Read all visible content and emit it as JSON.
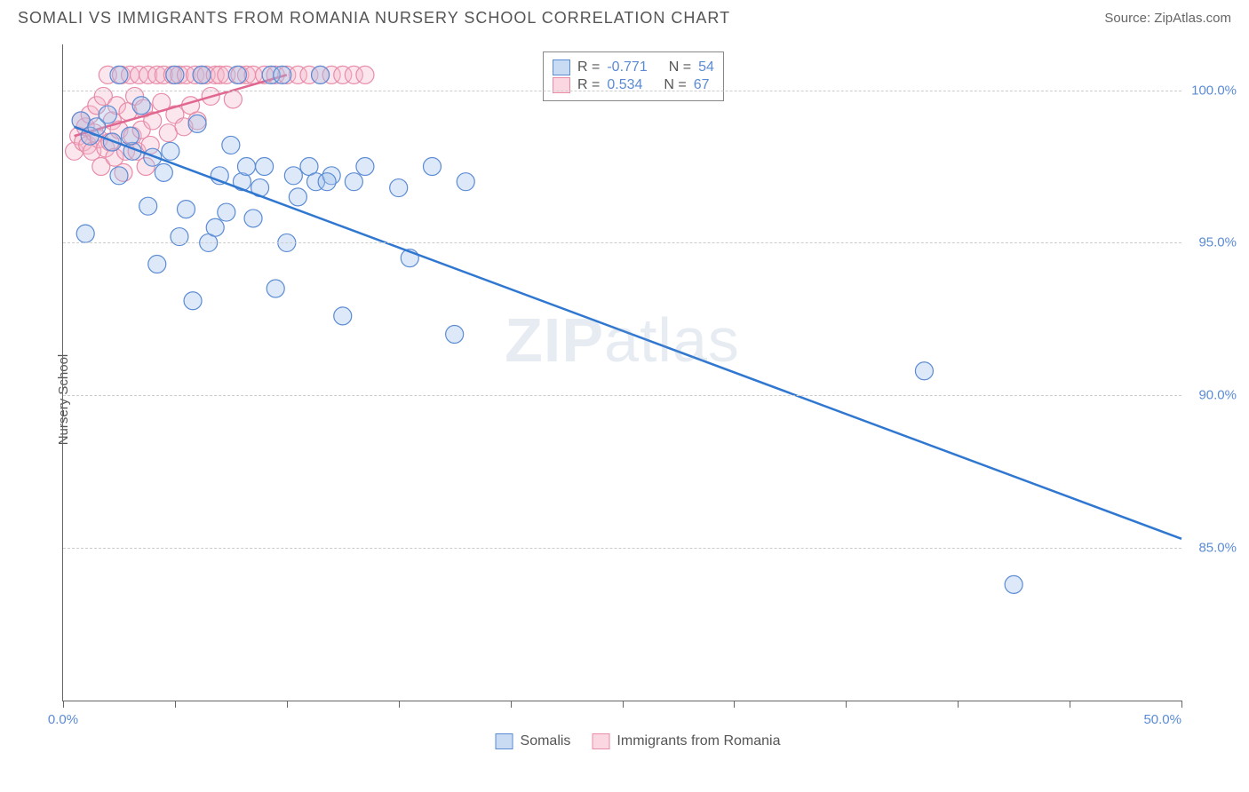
{
  "header": {
    "title": "SOMALI VS IMMIGRANTS FROM ROMANIA NURSERY SCHOOL CORRELATION CHART",
    "source_prefix": "Source: ",
    "source": "ZipAtlas.com"
  },
  "watermark": {
    "zip": "ZIP",
    "atlas": "atlas"
  },
  "chart": {
    "type": "scatter",
    "y_axis_label": "Nursery School",
    "background_color": "#ffffff",
    "grid_color": "#cccccc",
    "xlim": [
      0,
      50
    ],
    "ylim": [
      80,
      101.5
    ],
    "x_ticks": [
      0,
      5,
      10,
      15,
      20,
      25,
      30,
      35,
      40,
      45,
      50
    ],
    "x_tick_labels": {
      "0": "0.0%",
      "50": "50.0%"
    },
    "y_ticks": [
      85,
      90,
      95,
      100
    ],
    "y_tick_labels": [
      "85.0%",
      "90.0%",
      "95.0%",
      "100.0%"
    ],
    "y_tick_label_color": "#5b8bd4",
    "x_tick_label_color": "#5b8bd4",
    "axis_line_color": "#666666",
    "label_fontsize": 15,
    "marker_radius": 10,
    "marker_opacity": 0.35,
    "series": {
      "blue": {
        "label": "Somalis",
        "color_fill": "#9ec1ea",
        "color_stroke": "#5b8bd4",
        "R": "-0.771",
        "N": "54",
        "trend": {
          "x1": 0.5,
          "y1": 98.8,
          "x2": 50,
          "y2": 85.3,
          "color": "#2f77d0",
          "width": 2.5
        },
        "points": [
          [
            0.8,
            99.0
          ],
          [
            1.2,
            98.5
          ],
          [
            1.5,
            98.8
          ],
          [
            2.0,
            99.2
          ],
          [
            2.2,
            98.3
          ],
          [
            2.5,
            100.5
          ],
          [
            3.1,
            98.0
          ],
          [
            3.5,
            99.5
          ],
          [
            3.8,
            96.2
          ],
          [
            4.0,
            97.8
          ],
          [
            4.2,
            94.3
          ],
          [
            4.5,
            97.3
          ],
          [
            5.0,
            100.5
          ],
          [
            5.2,
            95.2
          ],
          [
            5.5,
            96.1
          ],
          [
            5.8,
            93.1
          ],
          [
            6.0,
            98.9
          ],
          [
            6.2,
            100.5
          ],
          [
            6.5,
            95.0
          ],
          [
            7.0,
            97.2
          ],
          [
            7.3,
            96.0
          ],
          [
            7.5,
            98.2
          ],
          [
            7.8,
            100.5
          ],
          [
            8.0,
            97.0
          ],
          [
            8.2,
            97.5
          ],
          [
            8.5,
            95.8
          ],
          [
            8.8,
            96.8
          ],
          [
            9.0,
            97.5
          ],
          [
            9.3,
            100.5
          ],
          [
            9.5,
            93.5
          ],
          [
            10.0,
            95.0
          ],
          [
            10.3,
            97.2
          ],
          [
            10.5,
            96.5
          ],
          [
            11.0,
            97.5
          ],
          [
            11.3,
            97.0
          ],
          [
            11.5,
            100.5
          ],
          [
            12.0,
            97.2
          ],
          [
            12.5,
            92.6
          ],
          [
            13.0,
            97.0
          ],
          [
            13.5,
            97.5
          ],
          [
            15.0,
            96.8
          ],
          [
            15.5,
            94.5
          ],
          [
            16.5,
            97.5
          ],
          [
            17.5,
            92.0
          ],
          [
            18.0,
            97.0
          ],
          [
            38.5,
            90.8
          ],
          [
            42.5,
            83.8
          ],
          [
            1.0,
            95.3
          ],
          [
            2.5,
            97.2
          ],
          [
            3.0,
            98.5
          ],
          [
            4.8,
            98.0
          ],
          [
            6.8,
            95.5
          ],
          [
            9.8,
            100.5
          ],
          [
            11.8,
            97.0
          ]
        ]
      },
      "pink": {
        "label": "Immigrants from Romania",
        "color_fill": "#f4b8cc",
        "color_stroke": "#e88ca8",
        "R": "0.534",
        "N": "67",
        "trend": {
          "x1": 0.5,
          "y1": 98.5,
          "x2": 10,
          "y2": 100.5,
          "color": "#e06890",
          "width": 2.5
        },
        "points": [
          [
            0.5,
            98.0
          ],
          [
            0.7,
            98.5
          ],
          [
            0.8,
            99.0
          ],
          [
            0.9,
            98.3
          ],
          [
            1.0,
            98.8
          ],
          [
            1.1,
            98.2
          ],
          [
            1.2,
            99.2
          ],
          [
            1.3,
            98.0
          ],
          [
            1.4,
            98.6
          ],
          [
            1.5,
            99.5
          ],
          [
            1.6,
            98.4
          ],
          [
            1.7,
            97.5
          ],
          [
            1.8,
            99.8
          ],
          [
            1.9,
            98.1
          ],
          [
            2.0,
            100.5
          ],
          [
            2.1,
            98.3
          ],
          [
            2.2,
            99.0
          ],
          [
            2.3,
            97.8
          ],
          [
            2.4,
            99.5
          ],
          [
            2.5,
            98.7
          ],
          [
            2.6,
            100.5
          ],
          [
            2.7,
            97.3
          ],
          [
            2.8,
            98.0
          ],
          [
            2.9,
            99.3
          ],
          [
            3.0,
            100.5
          ],
          [
            3.1,
            98.5
          ],
          [
            3.2,
            99.8
          ],
          [
            3.3,
            98.0
          ],
          [
            3.4,
            100.5
          ],
          [
            3.5,
            98.7
          ],
          [
            3.6,
            99.4
          ],
          [
            3.7,
            97.5
          ],
          [
            3.8,
            100.5
          ],
          [
            3.9,
            98.2
          ],
          [
            4.0,
            99.0
          ],
          [
            4.2,
            100.5
          ],
          [
            4.4,
            99.6
          ],
          [
            4.5,
            100.5
          ],
          [
            4.7,
            98.6
          ],
          [
            4.9,
            100.5
          ],
          [
            5.0,
            99.2
          ],
          [
            5.2,
            100.5
          ],
          [
            5.4,
            98.8
          ],
          [
            5.5,
            100.5
          ],
          [
            5.7,
            99.5
          ],
          [
            5.9,
            100.5
          ],
          [
            6.0,
            99.0
          ],
          [
            6.2,
            100.5
          ],
          [
            6.4,
            100.5
          ],
          [
            6.6,
            99.8
          ],
          [
            6.8,
            100.5
          ],
          [
            7.0,
            100.5
          ],
          [
            7.3,
            100.5
          ],
          [
            7.6,
            99.7
          ],
          [
            7.9,
            100.5
          ],
          [
            8.2,
            100.5
          ],
          [
            8.5,
            100.5
          ],
          [
            9.0,
            100.5
          ],
          [
            9.5,
            100.5
          ],
          [
            10.0,
            100.5
          ],
          [
            10.5,
            100.5
          ],
          [
            11.0,
            100.5
          ],
          [
            11.5,
            100.5
          ],
          [
            12.0,
            100.5
          ],
          [
            12.5,
            100.5
          ],
          [
            13.0,
            100.5
          ],
          [
            13.5,
            100.5
          ]
        ]
      }
    }
  },
  "legend_top": {
    "r_label": "R =",
    "n_label": "N ="
  },
  "legend_bottom": {
    "items": [
      "Somalis",
      "Immigrants from Romania"
    ]
  }
}
